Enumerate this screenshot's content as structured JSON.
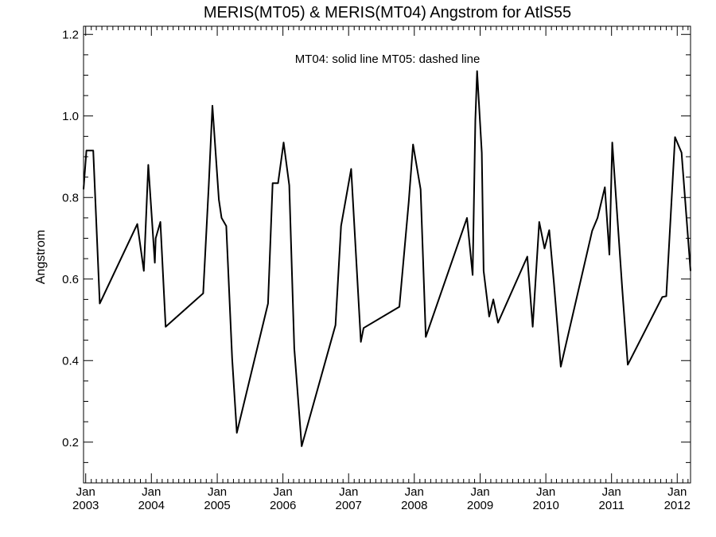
{
  "chart_data": {
    "type": "line",
    "title": "MERIS(MT05) & MERIS(MT04)  Angstrom for AtlS55",
    "annotation": "MT04: solid line   MT05: dashed line",
    "ylabel": "Angstrom",
    "xlabel": "",
    "ylim": [
      0.1,
      1.22
    ],
    "xlim": [
      "2002-12-20",
      "2012-03-15"
    ],
    "yticks": [
      {
        "label": "0.2",
        "value": 0.2
      },
      {
        "label": "0.4",
        "value": 0.4
      },
      {
        "label": "0.6",
        "value": 0.6
      },
      {
        "label": "0.8",
        "value": 0.8
      },
      {
        "label": "1.0",
        "value": 1.0
      },
      {
        "label": "1.2",
        "value": 1.2
      }
    ],
    "xticks": [
      {
        "month": "Jan",
        "year": "2003",
        "date": "2003-01-01"
      },
      {
        "month": "Jan",
        "year": "2004",
        "date": "2004-01-01"
      },
      {
        "month": "Jan",
        "year": "2005",
        "date": "2005-01-01"
      },
      {
        "month": "Jan",
        "year": "2006",
        "date": "2006-01-01"
      },
      {
        "month": "Jan",
        "year": "2007",
        "date": "2007-01-01"
      },
      {
        "month": "Jan",
        "year": "2008",
        "date": "2008-01-01"
      },
      {
        "month": "Jan",
        "year": "2009",
        "date": "2009-01-01"
      },
      {
        "month": "Jan",
        "year": "2010",
        "date": "2010-01-01"
      },
      {
        "month": "Jan",
        "year": "2011",
        "date": "2011-01-01"
      },
      {
        "month": "Jan",
        "year": "2012",
        "date": "2012-01-01"
      }
    ],
    "series": [
      {
        "style": "solid",
        "color": "#000000",
        "points": [
          [
            "2002-12-20",
            0.82
          ],
          [
            "2003-01-05",
            0.915
          ],
          [
            "2003-02-12",
            0.915
          ],
          [
            "2003-03-20",
            0.54
          ],
          [
            "2003-10-15",
            0.735
          ],
          [
            "2003-11-20",
            0.62
          ],
          [
            "2003-12-15",
            0.88
          ],
          [
            "2004-01-20",
            0.64
          ],
          [
            "2004-01-25",
            0.7
          ],
          [
            "2004-02-20",
            0.74
          ],
          [
            "2004-03-20",
            0.483
          ],
          [
            "2004-10-15",
            0.565
          ],
          [
            "2004-11-15",
            0.83
          ],
          [
            "2004-12-05",
            1.025
          ],
          [
            "2005-01-10",
            0.795
          ],
          [
            "2005-01-25",
            0.75
          ],
          [
            "2005-02-20",
            0.73
          ],
          [
            "2005-03-25",
            0.405
          ],
          [
            "2005-04-20",
            0.223
          ],
          [
            "2005-10-10",
            0.54
          ],
          [
            "2005-11-05",
            0.835
          ],
          [
            "2005-12-05",
            0.835
          ],
          [
            "2006-01-05",
            0.935
          ],
          [
            "2006-02-05",
            0.83
          ],
          [
            "2006-03-05",
            0.43
          ],
          [
            "2006-04-15",
            0.19
          ],
          [
            "2006-10-20",
            0.487
          ],
          [
            "2006-11-20",
            0.73
          ],
          [
            "2007-01-15",
            0.87
          ],
          [
            "2007-03-10",
            0.446
          ],
          [
            "2007-03-25",
            0.48
          ],
          [
            "2007-10-10",
            0.532
          ],
          [
            "2007-12-01",
            0.79
          ],
          [
            "2007-12-25",
            0.93
          ],
          [
            "2008-02-05",
            0.82
          ],
          [
            "2008-03-05",
            0.458
          ],
          [
            "2008-10-20",
            0.75
          ],
          [
            "2008-11-20",
            0.61
          ],
          [
            "2008-12-05",
            0.99
          ],
          [
            "2008-12-15",
            1.11
          ],
          [
            "2009-01-10",
            0.91
          ],
          [
            "2009-01-20",
            0.62
          ],
          [
            "2009-02-20",
            0.508
          ],
          [
            "2009-03-15",
            0.55
          ],
          [
            "2009-04-10",
            0.493
          ],
          [
            "2009-09-20",
            0.655
          ],
          [
            "2009-10-20",
            0.483
          ],
          [
            "2009-11-25",
            0.74
          ],
          [
            "2009-12-25",
            0.675
          ],
          [
            "2010-01-20",
            0.72
          ],
          [
            "2010-02-15",
            0.59
          ],
          [
            "2010-03-25",
            0.385
          ],
          [
            "2010-09-15",
            0.718
          ],
          [
            "2010-10-15",
            0.75
          ],
          [
            "2010-11-25",
            0.825
          ],
          [
            "2010-12-20",
            0.66
          ],
          [
            "2011-01-05",
            0.935
          ],
          [
            "2011-03-01",
            0.58
          ],
          [
            "2011-04-01",
            0.39
          ],
          [
            "2011-10-10",
            0.556
          ],
          [
            "2011-11-01",
            0.558
          ],
          [
            "2011-12-20",
            0.948
          ],
          [
            "2012-01-25",
            0.91
          ],
          [
            "2012-03-15",
            0.62
          ]
        ]
      }
    ],
    "grid": false,
    "legend": "none"
  }
}
